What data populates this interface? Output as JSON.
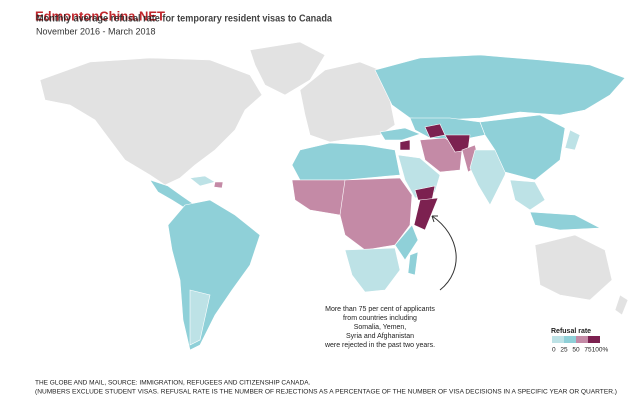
{
  "watermark": "EdmontonChina.NET",
  "title": "Monthly average refusal rate for temporary resident visas to Canada",
  "subtitle": "November 2016 - March 2018",
  "annotation": [
    "More than 75 per cent of applicants",
    "from countries including",
    "Somalia, Yemen,",
    "Syria and Afghanistan",
    "were rejected in the past two years."
  ],
  "legend": {
    "title": "Refusal rate",
    "ticks": [
      "0",
      "25",
      "50",
      "75",
      "100%"
    ],
    "colors": [
      "#bde2e6",
      "#8fd0d8",
      "#c48aa6",
      "#7c2150"
    ]
  },
  "source": "THE GLOBE AND MAIL, SOURCE: IMMIGRATION, REFUGEES AND CITIZENSHIP CANADA.",
  "note": "(NUMBERS EXCLUDE STUDENT VISAS. REFUSAL RATE IS THE NUMBER OF REJECTIONS AS A PERCENTAGE OF THE NUMBER OF VISA DECISIONS IN A SPECIFIC YEAR OR QUARTER.)"
}
